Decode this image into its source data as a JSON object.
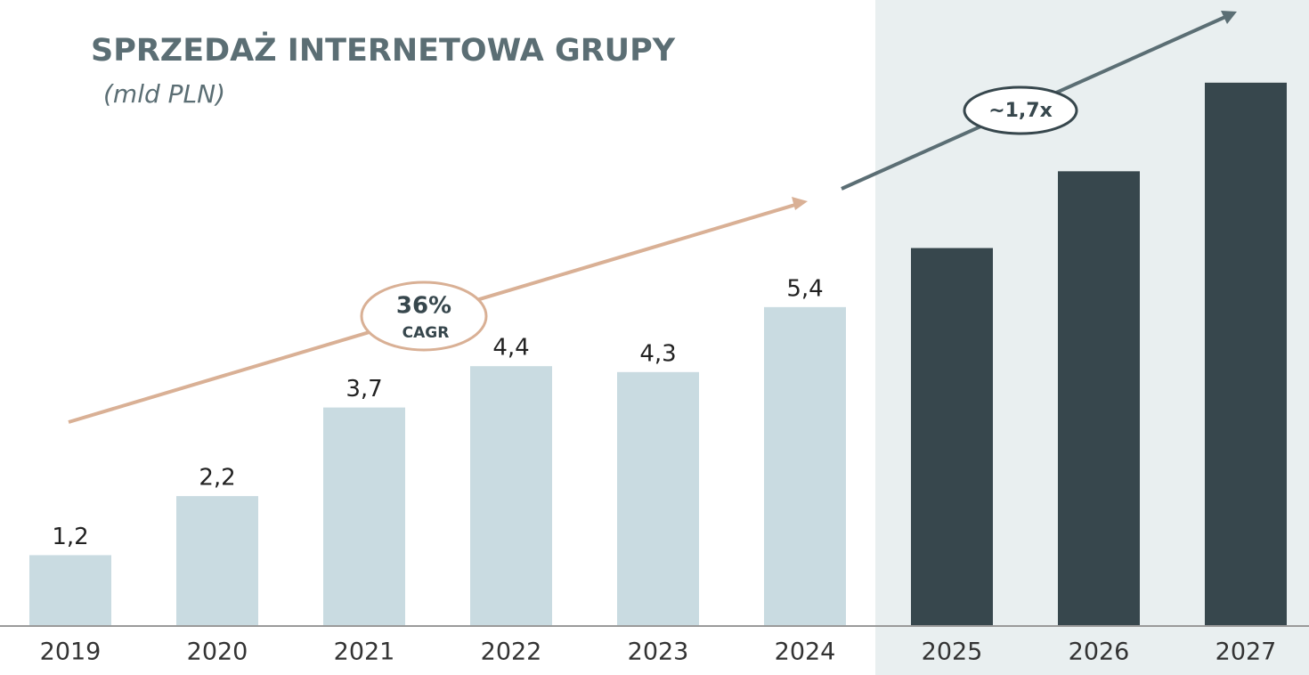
{
  "chart_data": {
    "type": "bar",
    "title": "SPRZEDAŻ INTERNETOWA GRUPY",
    "subtitle": "(mld PLN)",
    "categories": [
      "2019",
      "2020",
      "2021",
      "2022",
      "2023",
      "2024",
      "2025",
      "2026",
      "2027"
    ],
    "values": [
      1.2,
      2.2,
      3.7,
      4.4,
      4.3,
      5.4,
      6.4,
      7.7,
      9.2
    ],
    "value_labels": [
      "1,2",
      "2,2",
      "3,7",
      "4,4",
      "4,3",
      "5,4",
      null,
      null,
      null
    ],
    "colors": [
      "#c9dbe1",
      "#c9dbe1",
      "#c9dbe1",
      "#c9dbe1",
      "#c9dbe1",
      "#c9dbe1",
      "#37474d",
      "#37474d",
      "#37474d"
    ],
    "ylim": [
      0,
      10.6
    ],
    "annotations": {
      "cagr_value": "36%",
      "cagr_label": "CAGR",
      "multiple": "~1,7x"
    }
  }
}
